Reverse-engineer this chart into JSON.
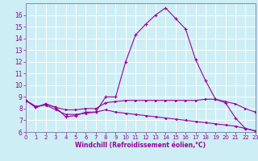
{
  "xlabel": "Windchill (Refroidissement éolien,°C)",
  "background_color": "#cdeef5",
  "line_color": "#990099",
  "x_hours": [
    0,
    1,
    2,
    3,
    4,
    5,
    6,
    7,
    8,
    9,
    10,
    11,
    12,
    13,
    14,
    15,
    16,
    17,
    18,
    19,
    20,
    21,
    22,
    23
  ],
  "line1_y": [
    8.7,
    8.1,
    8.4,
    8.1,
    7.3,
    7.4,
    7.7,
    7.7,
    9.0,
    9.0,
    12.0,
    14.3,
    15.2,
    16.0,
    16.6,
    15.7,
    14.8,
    12.2,
    10.4,
    8.8,
    8.5,
    7.2,
    6.3,
    6.1
  ],
  "line2_y": [
    8.7,
    8.1,
    8.4,
    8.1,
    7.9,
    7.9,
    8.0,
    8.0,
    8.5,
    8.6,
    8.7,
    8.7,
    8.7,
    8.7,
    8.7,
    8.7,
    8.7,
    8.7,
    8.8,
    8.8,
    8.6,
    8.4,
    8.0,
    7.7
  ],
  "line3_y": [
    8.7,
    8.2,
    8.3,
    7.9,
    7.5,
    7.5,
    7.6,
    7.7,
    7.9,
    7.7,
    7.6,
    7.5,
    7.4,
    7.3,
    7.2,
    7.1,
    7.0,
    6.9,
    6.8,
    6.7,
    6.6,
    6.5,
    6.3,
    6.1
  ],
  "ylim": [
    6,
    17
  ],
  "xlim": [
    0,
    23
  ],
  "yticks": [
    6,
    7,
    8,
    9,
    10,
    11,
    12,
    13,
    14,
    15,
    16
  ],
  "xticks": [
    0,
    1,
    2,
    3,
    4,
    5,
    6,
    7,
    8,
    9,
    10,
    11,
    12,
    13,
    14,
    15,
    16,
    17,
    18,
    19,
    20,
    21,
    22,
    23
  ],
  "grid_color": "#ffffff",
  "spine_color": "#7777aa"
}
